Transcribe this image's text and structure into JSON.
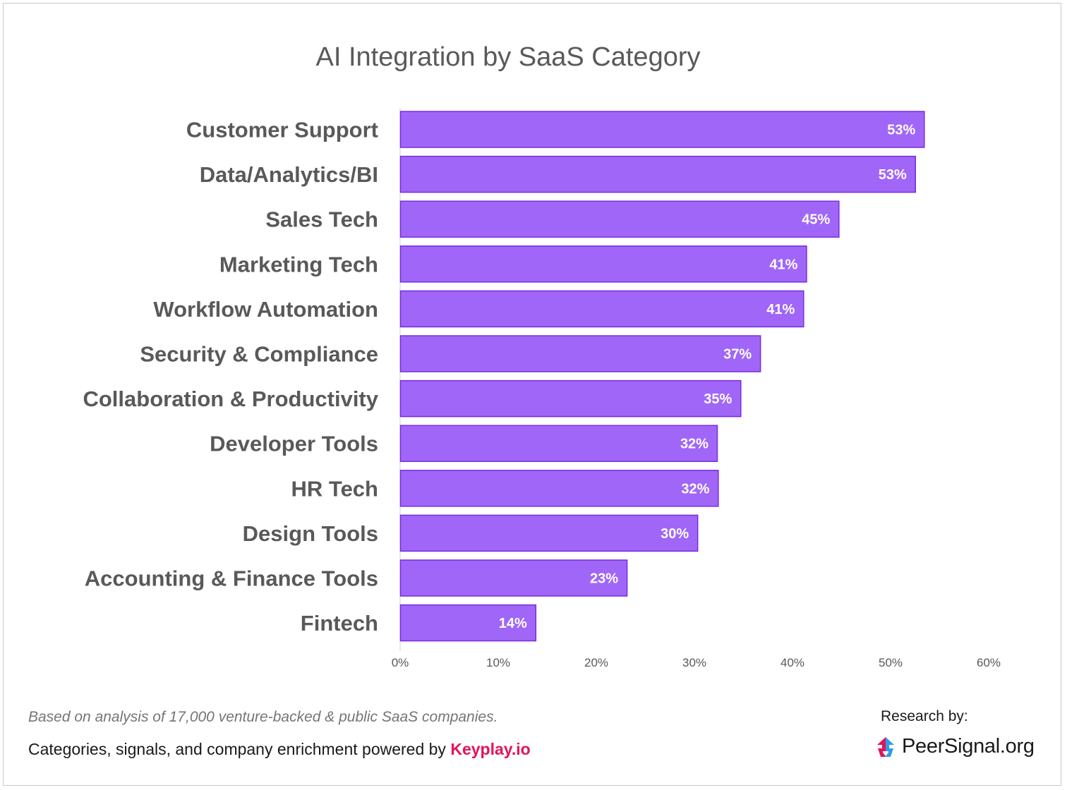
{
  "chart_data": {
    "type": "bar",
    "orientation": "horizontal",
    "title": "AI Integration by SaaS Category",
    "categories": [
      "Customer Support",
      "Data/Analytics/BI",
      "Sales Tech",
      "Marketing Tech",
      "Workflow Automation",
      "Security & Compliance",
      "Collaboration & Productivity",
      "Developer Tools",
      "HR Tech",
      "Design Tools",
      "Accounting & Finance Tools",
      "Fintech"
    ],
    "values": [
      53.4,
      52.5,
      44.7,
      41.4,
      41.1,
      36.7,
      34.7,
      32.3,
      32.4,
      30.3,
      23.1,
      13.8
    ],
    "data_labels": [
      "53%",
      "53%",
      "45%",
      "41%",
      "41%",
      "37%",
      "35%",
      "32%",
      "32%",
      "30%",
      "23%",
      "14%"
    ],
    "xlim": [
      0,
      60
    ],
    "x_ticks": [
      "0%",
      "10%",
      "20%",
      "30%",
      "40%",
      "50%",
      "60%"
    ],
    "bar_color": "#a066f8",
    "bar_edge_color": "#7b2be0",
    "grid": false,
    "legend": "none"
  },
  "footer": {
    "note": "Based on analysis of 17,000 venture-backed & public SaaS companies.",
    "credit_prefix": "Categories, signals, and company enrichment powered by ",
    "credit_brand": "Keyplay.io",
    "research_label": "Research by:",
    "logo_text": "PeerSignal.org",
    "brand_color": "#e3145a"
  }
}
